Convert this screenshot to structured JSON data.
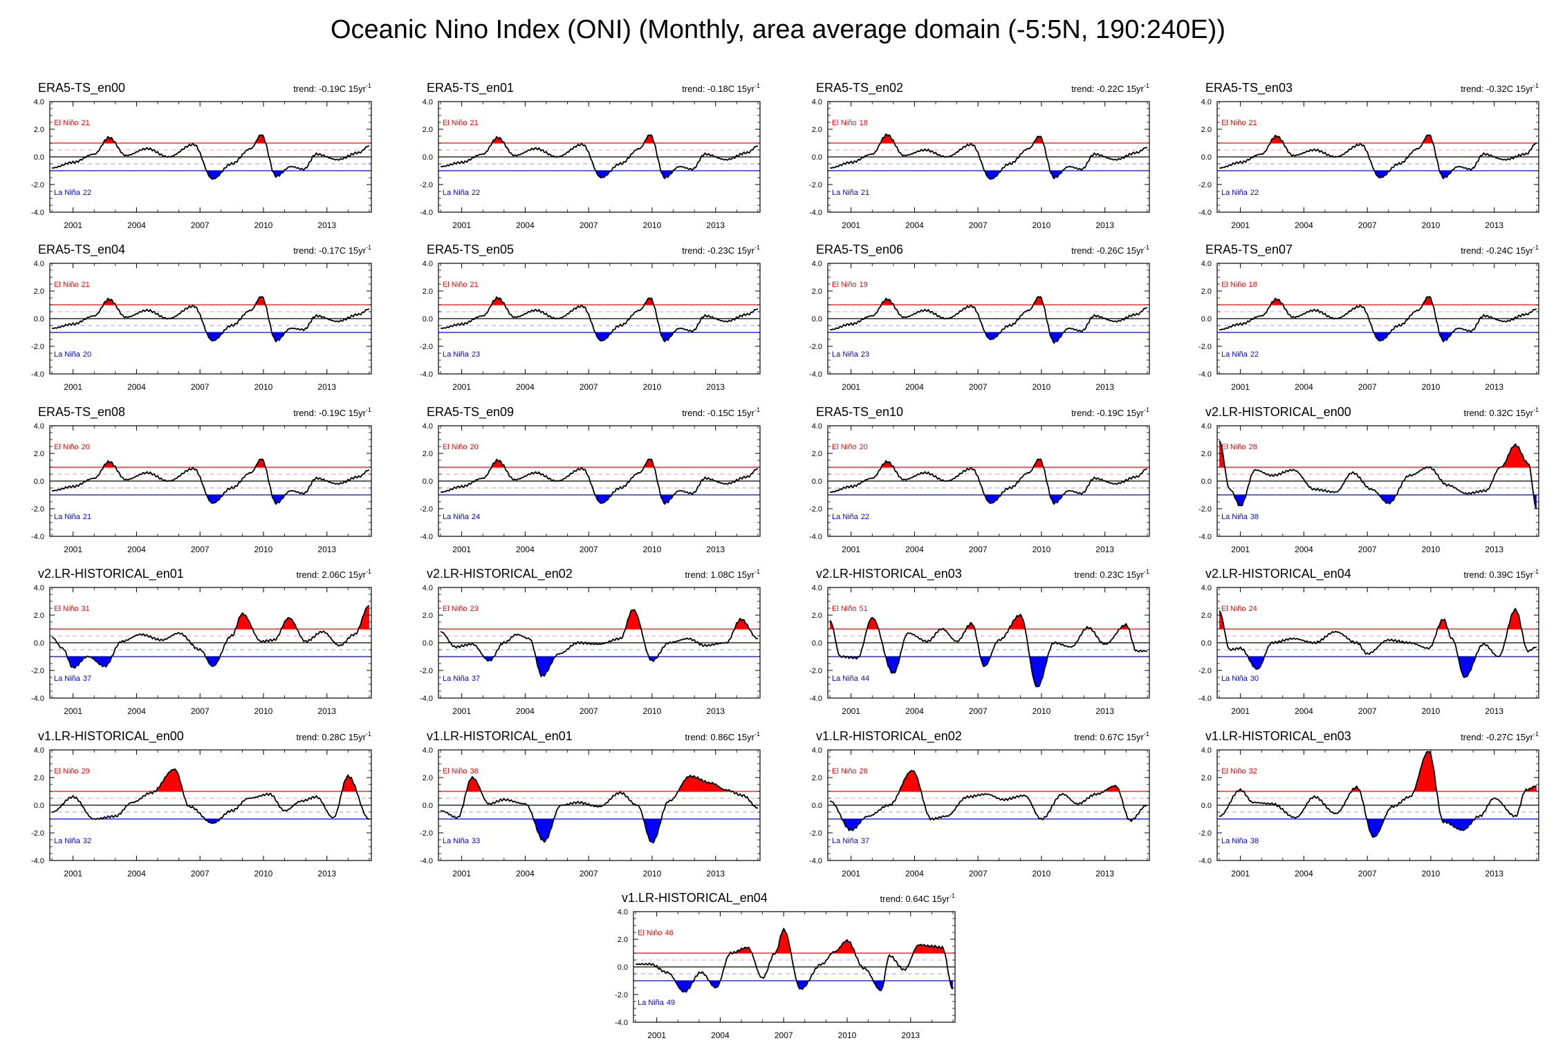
{
  "page": {
    "title": "Oceanic Nino Index (ONI) (Monthly, area average domain (-5:5N, 190:240E))"
  },
  "common": {
    "trend_prefix": "trend: ",
    "trend_unit": "C 15yr",
    "trend_exponent": "-1",
    "el_nino_label": "El Niño",
    "la_nina_label": "La Niña",
    "y_ticks": [
      "4.0",
      "2.0",
      "0.0",
      "-2.0",
      "-4.0"
    ],
    "x_ticks": [
      "2001",
      "2004",
      "2007",
      "2010",
      "2013"
    ],
    "colors": {
      "positive_fill": "#ff0000",
      "negative_fill": "#0000ff",
      "el_nino_text": "#ff0000",
      "la_nina_text": "#0000ff",
      "line": "#000000"
    }
  },
  "chart_data": {
    "type": "area",
    "x_start_year": 2000.0,
    "x_end_year": 2015.0,
    "ylim": [
      -4.0,
      4.0
    ],
    "el_nino_threshold": 1.0,
    "la_nina_threshold": -1.0,
    "weak_thresholds": [
      0.5,
      -0.5
    ],
    "panels": [
      {
        "title": "ERA5-TS_en00",
        "trend": "-0.19",
        "el_nino_count": "21",
        "la_nina_count": "22",
        "x": [
          2000,
          2001,
          2002,
          2002.7,
          2003.5,
          2004.5,
          2005.5,
          2006.7,
          2007.6,
          2008.5,
          2009.4,
          2009.9,
          2010.6,
          2011.3,
          2011.9,
          2012.5,
          2013.5,
          2014.5,
          2015
        ],
        "values": [
          -0.8,
          -0.4,
          0.2,
          1.4,
          0.1,
          0.6,
          0.0,
          0.9,
          -1.6,
          -0.5,
          0.6,
          1.6,
          -1.4,
          -0.7,
          -0.9,
          0.2,
          -0.2,
          0.3,
          0.8
        ]
      },
      {
        "title": "ERA5-TS_en01",
        "trend": "-0.18",
        "el_nino_count": "21",
        "la_nina_count": "22",
        "x": [
          2000,
          2001,
          2002,
          2002.7,
          2003.5,
          2004.5,
          2005.5,
          2006.7,
          2007.6,
          2008.5,
          2009.4,
          2009.9,
          2010.6,
          2011.3,
          2011.9,
          2012.5,
          2013.5,
          2014.5,
          2015
        ],
        "values": [
          -0.7,
          -0.4,
          0.2,
          1.4,
          0.1,
          0.6,
          0.0,
          0.9,
          -1.5,
          -0.5,
          0.6,
          1.6,
          -1.5,
          -0.7,
          -0.9,
          0.2,
          -0.2,
          0.3,
          0.8
        ]
      },
      {
        "title": "ERA5-TS_en02",
        "trend": "-0.22",
        "el_nino_count": "18",
        "la_nina_count": "21",
        "x": [
          2000,
          2001,
          2002,
          2002.7,
          2003.5,
          2004.5,
          2005.5,
          2006.7,
          2007.6,
          2008.5,
          2009.4,
          2009.9,
          2010.6,
          2011.3,
          2011.9,
          2012.5,
          2013.5,
          2014.5,
          2015
        ],
        "values": [
          -0.8,
          -0.4,
          0.2,
          1.6,
          0.1,
          0.5,
          0.0,
          0.9,
          -1.6,
          -0.5,
          0.6,
          1.5,
          -1.5,
          -0.7,
          -0.9,
          0.2,
          -0.2,
          0.3,
          0.7
        ]
      },
      {
        "title": "ERA5-TS_en03",
        "trend": "-0.32",
        "el_nino_count": "21",
        "la_nina_count": "22",
        "x": [
          2000,
          2001,
          2002,
          2002.7,
          2003.5,
          2004.5,
          2005.5,
          2006.7,
          2007.6,
          2008.5,
          2009.4,
          2009.9,
          2010.6,
          2011.3,
          2011.9,
          2012.5,
          2013.5,
          2014.5,
          2015
        ],
        "values": [
          -0.8,
          -0.4,
          0.2,
          1.5,
          0.1,
          0.5,
          0.0,
          0.9,
          -1.5,
          -0.5,
          0.6,
          1.6,
          -1.5,
          -0.7,
          -0.9,
          0.2,
          -0.2,
          0.2,
          1.0
        ]
      },
      {
        "title": "ERA5-TS_en04",
        "trend": "-0.17",
        "el_nino_count": "21",
        "la_nina_count": "20",
        "x": [
          2000,
          2001,
          2002,
          2002.7,
          2003.5,
          2004.5,
          2005.5,
          2006.7,
          2007.6,
          2008.5,
          2009.4,
          2009.9,
          2010.6,
          2011.3,
          2011.9,
          2012.5,
          2013.5,
          2014.5,
          2015
        ],
        "values": [
          -0.7,
          -0.4,
          0.2,
          1.4,
          0.1,
          0.6,
          0.0,
          0.9,
          -1.6,
          -0.5,
          0.6,
          1.6,
          -1.6,
          -0.7,
          -0.8,
          0.2,
          -0.2,
          0.3,
          0.7
        ]
      },
      {
        "title": "ERA5-TS_en05",
        "trend": "-0.23",
        "el_nino_count": "21",
        "la_nina_count": "23",
        "x": [
          2000,
          2001,
          2002,
          2002.7,
          2003.5,
          2004.5,
          2005.5,
          2006.7,
          2007.6,
          2008.5,
          2009.4,
          2009.9,
          2010.6,
          2011.3,
          2011.9,
          2012.5,
          2013.5,
          2014.5,
          2015
        ],
        "values": [
          -0.7,
          -0.4,
          0.2,
          1.5,
          0.1,
          0.6,
          0.0,
          0.9,
          -1.6,
          -0.5,
          0.6,
          1.5,
          -1.6,
          -0.7,
          -0.9,
          0.2,
          -0.2,
          0.3,
          0.7
        ]
      },
      {
        "title": "ERA5-TS_en06",
        "trend": "-0.26",
        "el_nino_count": "19",
        "la_nina_count": "23",
        "x": [
          2000,
          2001,
          2002,
          2002.7,
          2003.5,
          2004.5,
          2005.5,
          2006.7,
          2007.6,
          2008.5,
          2009.4,
          2009.9,
          2010.6,
          2011.3,
          2011.9,
          2012.5,
          2013.5,
          2014.5,
          2015
        ],
        "values": [
          -0.8,
          -0.4,
          0.2,
          1.4,
          0.1,
          0.6,
          0.0,
          0.9,
          -1.5,
          -0.5,
          0.6,
          1.6,
          -1.7,
          -0.7,
          -0.9,
          0.2,
          -0.2,
          0.3,
          0.8
        ]
      },
      {
        "title": "ERA5-TS_en07",
        "trend": "-0.24",
        "el_nino_count": "18",
        "la_nina_count": "22",
        "x": [
          2000,
          2001,
          2002,
          2002.7,
          2003.5,
          2004.5,
          2005.5,
          2006.7,
          2007.6,
          2008.5,
          2009.4,
          2009.9,
          2010.6,
          2011.3,
          2011.9,
          2012.5,
          2013.5,
          2014.5,
          2015
        ],
        "values": [
          -0.8,
          -0.4,
          0.2,
          1.4,
          0.1,
          0.6,
          0.0,
          0.9,
          -1.6,
          -0.5,
          0.6,
          1.6,
          -1.6,
          -0.7,
          -0.9,
          0.2,
          -0.2,
          0.3,
          0.7
        ]
      },
      {
        "title": "ERA5-TS_en08",
        "trend": "-0.19",
        "el_nino_count": "20",
        "la_nina_count": "21",
        "x": [
          2000,
          2001,
          2002,
          2002.7,
          2003.5,
          2004.5,
          2005.5,
          2006.7,
          2007.6,
          2008.5,
          2009.4,
          2009.9,
          2010.6,
          2011.3,
          2011.9,
          2012.5,
          2013.5,
          2014.5,
          2015
        ],
        "values": [
          -0.7,
          -0.4,
          0.2,
          1.4,
          0.1,
          0.6,
          0.0,
          0.9,
          -1.6,
          -0.5,
          0.6,
          1.6,
          -1.6,
          -0.7,
          -0.9,
          0.2,
          -0.2,
          0.3,
          0.8
        ]
      },
      {
        "title": "ERA5-TS_en09",
        "trend": "-0.15",
        "el_nino_count": "20",
        "la_nina_count": "24",
        "x": [
          2000,
          2001,
          2002,
          2002.7,
          2003.5,
          2004.5,
          2005.5,
          2006.7,
          2007.6,
          2008.5,
          2009.4,
          2009.9,
          2010.6,
          2011.3,
          2011.9,
          2012.5,
          2013.5,
          2014.5,
          2015
        ],
        "values": [
          -0.8,
          -0.4,
          0.2,
          1.5,
          0.1,
          0.6,
          0.0,
          0.9,
          -1.6,
          -0.5,
          0.6,
          1.6,
          -1.6,
          -0.7,
          -0.9,
          0.2,
          -0.2,
          0.3,
          0.9
        ]
      },
      {
        "title": "ERA5-TS_en10",
        "trend": "-0.19",
        "el_nino_count": "20",
        "la_nina_count": "22",
        "x": [
          2000,
          2001,
          2002,
          2002.7,
          2003.5,
          2004.5,
          2005.5,
          2006.7,
          2007.6,
          2008.5,
          2009.4,
          2009.9,
          2010.6,
          2011.3,
          2011.9,
          2012.5,
          2013.5,
          2014.5,
          2015
        ],
        "values": [
          -0.8,
          -0.4,
          0.2,
          1.4,
          0.1,
          0.6,
          0.0,
          0.9,
          -1.6,
          -0.5,
          0.6,
          1.6,
          -1.6,
          -0.7,
          -0.9,
          0.2,
          -0.2,
          0.3,
          0.9
        ]
      },
      {
        "title": "v2.LR-HISTORICAL_en00",
        "trend": "0.32",
        "el_nino_count": "28",
        "la_nina_count": "38",
        "x": [
          2000,
          2000.5,
          2001,
          2001.7,
          2002.5,
          2003.5,
          2004.5,
          2005.5,
          2006.3,
          2007.2,
          2008,
          2009,
          2009.9,
          2010.8,
          2011.7,
          2012.6,
          2013.3,
          2014,
          2014.6,
          2015
        ],
        "values": [
          2.9,
          -0.6,
          -1.8,
          0.8,
          0.4,
          0.8,
          -0.6,
          -0.8,
          0.6,
          -0.6,
          -1.6,
          0.4,
          1.0,
          -0.3,
          -0.9,
          -0.7,
          1.0,
          2.6,
          1.3,
          -2.0
        ]
      },
      {
        "title": "v2.LR-HISTORICAL_en01",
        "trend": "2.06",
        "el_nino_count": "31",
        "la_nina_count": "37",
        "x": [
          2000,
          2000.5,
          2001,
          2001.7,
          2002.5,
          2003.3,
          2004.2,
          2005.2,
          2006,
          2007,
          2007.6,
          2008.5,
          2009,
          2009.9,
          2010.5,
          2011.2,
          2012,
          2012.8,
          2013.6,
          2014.3,
          2015
        ],
        "values": [
          0.4,
          -0.4,
          -1.8,
          -1.0,
          -1.7,
          0.1,
          0.6,
          0.2,
          0.7,
          -0.5,
          -1.7,
          0.5,
          2.1,
          0.1,
          0.2,
          1.8,
          0.1,
          0.8,
          -0.2,
          0.6,
          2.7
        ]
      },
      {
        "title": "v2.LR-HISTORICAL_en02",
        "trend": "1.08",
        "el_nino_count": "23",
        "la_nina_count": "37",
        "x": [
          2000,
          2000.7,
          2001.5,
          2002.3,
          2003,
          2003.6,
          2004.2,
          2004.8,
          2005.6,
          2006.5,
          2007.5,
          2008.5,
          2009.1,
          2010,
          2010.8,
          2011.7,
          2012.5,
          2013.5,
          2014.2,
          2015
        ],
        "values": [
          0.8,
          -0.3,
          -0.1,
          -1.3,
          0.0,
          0.6,
          0.3,
          -2.4,
          -0.8,
          0.0,
          -0.1,
          0.3,
          2.4,
          -1.3,
          0.0,
          0.3,
          -0.2,
          0.0,
          1.7,
          0.3
        ]
      },
      {
        "title": "v2.LR-HISTORICAL_en03",
        "trend": "0.23",
        "el_nino_count": "51",
        "la_nina_count": "44",
        "x": [
          2000,
          2000.5,
          2001.3,
          2002,
          2003,
          2003.7,
          2004.6,
          2005.3,
          2006,
          2006.7,
          2007.3,
          2008,
          2009,
          2009.8,
          2010.6,
          2011.4,
          2012.2,
          2013,
          2014,
          2014.5,
          2015
        ],
        "values": [
          1.6,
          -1.0,
          -1.1,
          1.8,
          -2.2,
          0.7,
          0.1,
          1.0,
          0.1,
          1.4,
          -1.7,
          0.2,
          2.0,
          -3.2,
          0.0,
          -0.3,
          1.1,
          -0.1,
          1.3,
          -0.6,
          -0.6
        ]
      },
      {
        "title": "v2.LR-HISTORICAL_en04",
        "trend": "0.39",
        "el_nino_count": "24",
        "la_nina_count": "30",
        "x": [
          2000,
          2000.5,
          2001,
          2001.8,
          2002.5,
          2003.5,
          2004.5,
          2005.5,
          2006.5,
          2007,
          2008,
          2009,
          2009.9,
          2010.6,
          2011,
          2011.6,
          2012.5,
          2013.2,
          2014,
          2014.6,
          2015
        ],
        "values": [
          2.3,
          -0.5,
          -0.4,
          -1.9,
          0.0,
          0.3,
          0.0,
          0.8,
          0.0,
          -0.8,
          0.2,
          0.0,
          -0.4,
          1.7,
          0.3,
          -2.5,
          -0.1,
          -1.0,
          2.4,
          -0.6,
          -0.3
        ]
      },
      {
        "title": "v1.LR-HISTORICAL_en00",
        "trend": "0.28",
        "el_nino_count": "29",
        "la_nina_count": "32",
        "x": [
          2000,
          2001,
          2002,
          2003,
          2003.8,
          2004.7,
          2005.8,
          2006.5,
          2007.6,
          2008.5,
          2009.3,
          2010.3,
          2011,
          2011.8,
          2012.5,
          2013.3,
          2014,
          2015
        ],
        "values": [
          -0.5,
          0.6,
          -1.0,
          -0.8,
          0.2,
          0.9,
          2.6,
          -0.1,
          -1.3,
          -0.4,
          0.5,
          0.8,
          -0.4,
          0.3,
          0.6,
          -0.9,
          2.1,
          -1.0
        ]
      },
      {
        "title": "v1.LR-HISTORICAL_en01",
        "trend": "0.86",
        "el_nino_count": "36",
        "la_nina_count": "33",
        "x": [
          2000,
          2000.8,
          2001.5,
          2002.3,
          2003,
          2004,
          2004.9,
          2005.7,
          2006.5,
          2007.5,
          2008.5,
          2009.3,
          2010,
          2010.8,
          2011.8,
          2012.8,
          2013.5,
          2014.3,
          2015
        ],
        "values": [
          -0.4,
          -0.9,
          2.0,
          0.1,
          0.4,
          0.1,
          -2.6,
          0.0,
          0.2,
          -0.1,
          0.9,
          0.0,
          -2.7,
          0.3,
          2.1,
          1.6,
          1.1,
          0.7,
          -0.2
        ]
      },
      {
        "title": "v1.LR-HISTORICAL_en02",
        "trend": "0.67",
        "el_nino_count": "26",
        "la_nina_count": "37",
        "x": [
          2000,
          2001,
          2001.8,
          2002.8,
          2003.9,
          2004.8,
          2005.5,
          2006.5,
          2007.4,
          2008.2,
          2009.2,
          2010,
          2011,
          2011.7,
          2012.6,
          2013.5,
          2014.2,
          2015
        ],
        "values": [
          0.3,
          -1.8,
          -0.8,
          0.0,
          2.5,
          -1.0,
          -0.8,
          0.6,
          0.8,
          0.4,
          0.7,
          -1.0,
          0.8,
          0.1,
          0.8,
          1.4,
          -1.1,
          0.0
        ]
      },
      {
        "title": "v1.LR-HISTORICAL_en03",
        "trend": "-0.27",
        "el_nino_count": "32",
        "la_nina_count": "38",
        "x": [
          2000,
          2001,
          2001.6,
          2002.5,
          2003.6,
          2004.5,
          2005.5,
          2006.5,
          2007.3,
          2008.2,
          2009,
          2009.9,
          2010.6,
          2011.5,
          2012.3,
          2013,
          2014,
          2014.5,
          2015
        ],
        "values": [
          -0.8,
          1.1,
          0.2,
          0.1,
          -0.9,
          0.6,
          -0.6,
          1.3,
          -2.3,
          -0.1,
          0.6,
          3.9,
          -1.2,
          -1.8,
          -0.8,
          0.5,
          -0.8,
          1.1,
          1.4
        ]
      },
      {
        "title": "v1.LR-HISTORICAL_en04",
        "trend": "0.64",
        "el_nino_count": "46",
        "la_nina_count": "49",
        "x": [
          2000,
          2000.7,
          2001.5,
          2002.3,
          2003.1,
          2003.8,
          2004.5,
          2005.3,
          2006,
          2006.6,
          2007,
          2007.8,
          2008.8,
          2009.4,
          2010,
          2010.8,
          2011.6,
          2012,
          2012.7,
          2013.4,
          2014,
          2014.5,
          2015
        ],
        "values": [
          0.2,
          0.2,
          -0.4,
          -1.8,
          -0.4,
          -1.5,
          1.0,
          1.4,
          -0.8,
          1.0,
          2.7,
          -1.6,
          0.2,
          1.1,
          1.9,
          -0.1,
          -1.7,
          0.8,
          -0.2,
          1.6,
          1.5,
          1.4,
          -1.6
        ]
      }
    ]
  }
}
